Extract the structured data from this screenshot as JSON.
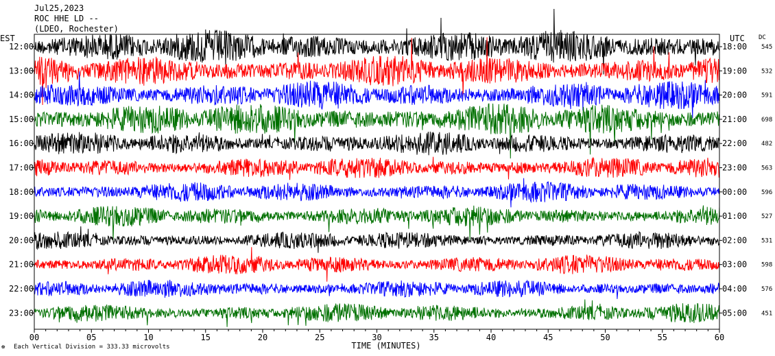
{
  "header": {
    "date": "Jul25,2023",
    "station": "ROC HHE LD --",
    "location": "(LDEO, Rochester)"
  },
  "axes": {
    "left_label": "EST",
    "right_label": "UTC",
    "dc_label": "DC",
    "x_title": "TIME (MINUTES)",
    "footer_note": "Each Vertical Division = 333.33 microvolts",
    "footer_mark": "☸"
  },
  "chart_data": {
    "type": "line",
    "title": "",
    "xlabel": "TIME (MINUTES)",
    "xlim": [
      0,
      60
    ],
    "x_ticks": [
      "00",
      "05",
      "10",
      "15",
      "20",
      "25",
      "30",
      "35",
      "40",
      "45",
      "50",
      "55",
      "60"
    ],
    "trace_colors": [
      "#000000",
      "#ff0000",
      "#0000ff",
      "#007000"
    ],
    "rows": [
      {
        "est": "12:00",
        "utc": "18:00",
        "dc": "545",
        "amplitude": 1.3
      },
      {
        "est": "13:00",
        "utc": "19:00",
        "dc": "532",
        "amplitude": 1.2
      },
      {
        "est": "14:00",
        "utc": "20:00",
        "dc": "591",
        "amplitude": 1.1
      },
      {
        "est": "15:00",
        "utc": "21:00",
        "dc": "698",
        "amplitude": 1.25
      },
      {
        "est": "16:00",
        "utc": "22:00",
        "dc": "482",
        "amplitude": 0.9
      },
      {
        "est": "17:00",
        "utc": "23:00",
        "dc": "563",
        "amplitude": 0.85
      },
      {
        "est": "18:00",
        "utc": "00:00",
        "dc": "596",
        "amplitude": 0.8
      },
      {
        "est": "19:00",
        "utc": "01:00",
        "dc": "527",
        "amplitude": 0.8
      },
      {
        "est": "20:00",
        "utc": "02:00",
        "dc": "531",
        "amplitude": 0.7
      },
      {
        "est": "21:00",
        "utc": "03:00",
        "dc": "598",
        "amplitude": 0.75
      },
      {
        "est": "22:00",
        "utc": "04:00",
        "dc": "576",
        "amplitude": 0.7
      },
      {
        "est": "23:00",
        "utc": "05:00",
        "dc": "451",
        "amplitude": 0.75
      }
    ]
  }
}
